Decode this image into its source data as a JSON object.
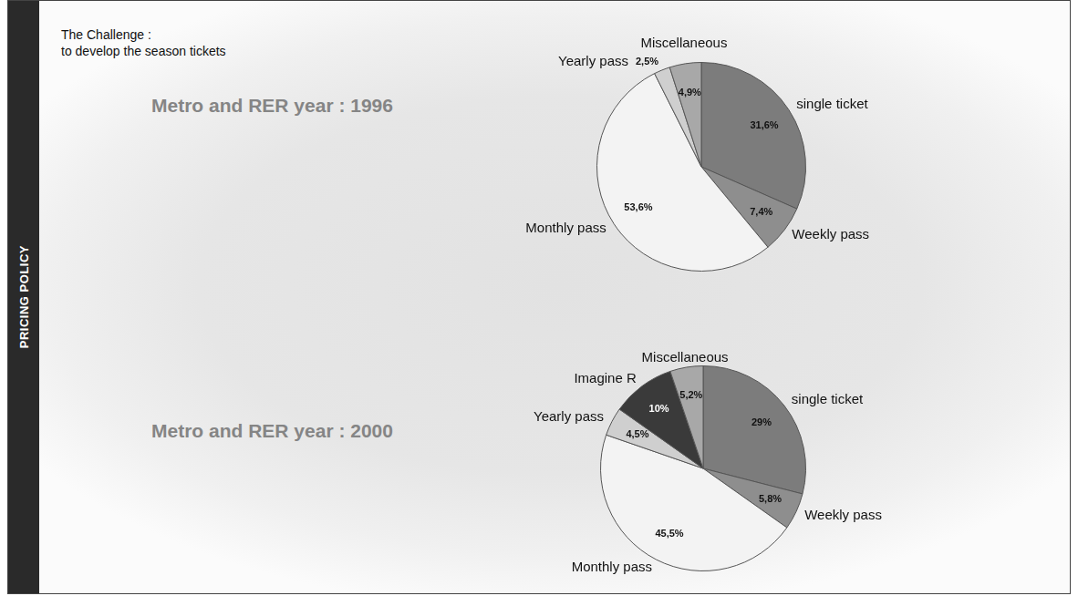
{
  "header": {
    "section": "PRICING POLICY",
    "challenge": [
      "The Challenge :",
      "to develop the season tickets"
    ]
  },
  "chart_data": [
    {
      "type": "pie",
      "title": "Metro and RER year : 1996",
      "categories": [
        "single ticket",
        "Weekly pass",
        "Monthly pass",
        "Yearly pass",
        "Miscellaneous"
      ],
      "values": [
        31.6,
        7.4,
        53.6,
        2.5,
        4.9
      ],
      "value_labels": [
        "31,6%",
        "7,4%",
        "53,6%",
        "2,5%",
        "4,9%"
      ],
      "colors": [
        "#7c7c7c",
        "#8e8e8e",
        "#f3f3f3",
        "#cfcfcf",
        "#a8a8a8"
      ],
      "data_labels": true
    },
    {
      "type": "pie",
      "title": "Metro and RER year : 2000",
      "categories": [
        "single ticket",
        "Weekly pass",
        "Monthly pass",
        "Yearly pass",
        "Imagine R",
        "Miscellaneous"
      ],
      "values": [
        29,
        5.8,
        45.5,
        4.5,
        10,
        5.2
      ],
      "value_labels": [
        "29%",
        "5,8%",
        "45,5%",
        "4,5%",
        "10%",
        "5,2%"
      ],
      "colors": [
        "#7c7c7c",
        "#8e8e8e",
        "#f3f3f3",
        "#cfcfcf",
        "#3a3a3a",
        "#a8a8a8"
      ],
      "data_labels": true
    }
  ]
}
